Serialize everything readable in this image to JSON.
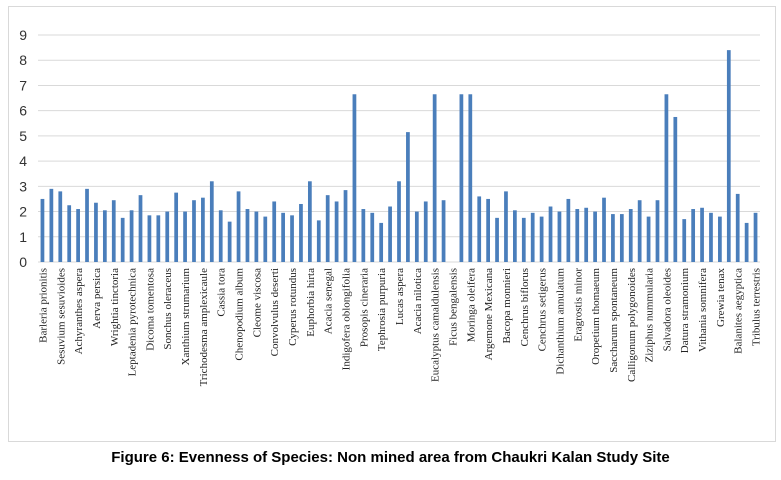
{
  "caption": "Figure 6: Evenness of Species: Non mined area from Chaukri Kalan Study Site",
  "chart_data": {
    "type": "bar",
    "title": "",
    "xlabel": "",
    "ylabel": "",
    "ylim": [
      0,
      9
    ],
    "yticks": [
      0,
      1,
      2,
      3,
      4,
      5,
      6,
      7,
      8,
      9
    ],
    "grid": true,
    "legend": "none",
    "bar_color": "#4a7ebb",
    "grid_color": "#d9d9d9",
    "categories": [
      "Barleria prionitis",
      "",
      "Sesuvium sesuvioides",
      "",
      "Achyranthes aspera",
      "",
      "Aerva persica",
      "",
      "Wrightia tinctoria",
      "",
      "Leptadenia pyrotechnica",
      "",
      "Dicoma tomentosa",
      "",
      "Sonchus oleraceus",
      "",
      "Xanthium strumarium",
      "",
      "Trichodesma amplexicaule",
      "",
      "Cassia tora",
      "",
      "Chenopodium album",
      "",
      "Cleome viscosa",
      "",
      "Convolvulus deserti",
      "",
      "Cyperus rotundus",
      "",
      "Euphorbia hirta",
      "",
      "Acacia senegal",
      "",
      "Indigofera oblongifolia",
      "",
      "Prosopis cineraria",
      "",
      "Tephrosia purpuria",
      "",
      "Lucas aspera",
      "",
      "Acacia nilotica",
      "",
      "Eucalyptus camaldulensis",
      "",
      "Ficus bengalensis",
      "",
      "Moringa oleifera",
      "",
      "Argemone Mexicana",
      "",
      "Bacopa monnieri",
      "",
      "Cenchrus biflorus",
      "",
      "Cenchrus setigerus",
      "",
      "Dichanthium annulatum",
      "",
      "Eragrostis minor",
      "",
      "Oropetium thomaeum",
      "",
      "Saccharum spontaneum",
      "",
      "Calligonum polygonoides",
      "",
      "Ziziphus nummularia",
      "",
      "Salvadora oleoides",
      "",
      "Datura stramonium",
      "",
      "Vithania somnifera",
      "",
      "Grewia tenax",
      "",
      "Balanites aegyptica",
      "",
      "Tribulus terrestris"
    ],
    "values": [
      2.5,
      2.9,
      2.8,
      2.25,
      2.1,
      2.9,
      2.35,
      2.05,
      2.45,
      1.75,
      2.05,
      2.65,
      1.85,
      1.85,
      2.0,
      2.75,
      2.0,
      2.45,
      2.55,
      3.2,
      2.05,
      1.6,
      2.8,
      2.1,
      2.0,
      1.8,
      2.4,
      1.95,
      1.85,
      2.3,
      3.2,
      1.65,
      2.65,
      2.4,
      2.85,
      6.65,
      2.1,
      1.95,
      1.55,
      2.2,
      3.2,
      5.15,
      2.0,
      2.4,
      6.65,
      2.45,
      0,
      6.65,
      6.65,
      2.6,
      2.5,
      1.75,
      2.8,
      2.05,
      1.75,
      1.95,
      1.8,
      2.2,
      2.0,
      2.5,
      2.1,
      2.15,
      2.0,
      2.55,
      1.9,
      1.9,
      2.1,
      2.45,
      1.8,
      2.45,
      6.65,
      5.75,
      1.7,
      2.1,
      2.15,
      1.95,
      1.8,
      8.4,
      2.7,
      1.55,
      1.95
    ]
  }
}
